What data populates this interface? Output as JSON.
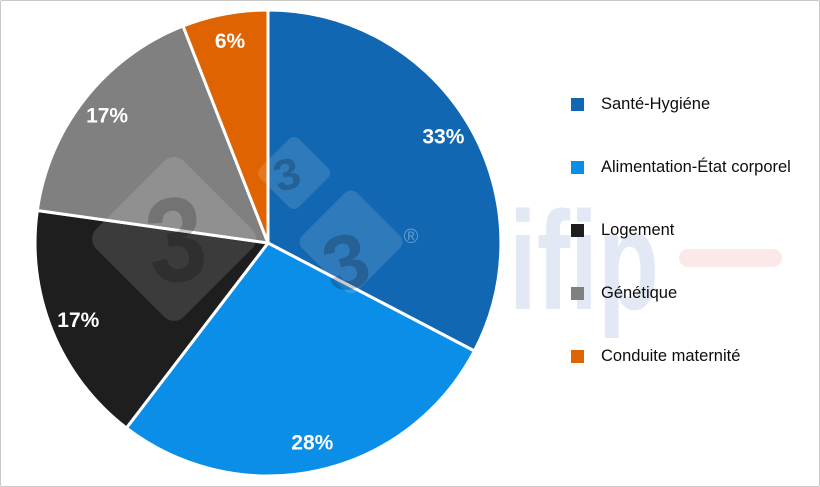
{
  "frame": {
    "background": "#ffffff",
    "border_color": "#c9c9c9"
  },
  "chart_data": {
    "type": "pie",
    "title": "",
    "categories": [
      "Santé-Hygiéne",
      "Alimentation-État corporel",
      "Logement",
      "Génétique",
      "Conduite maternité"
    ],
    "values": [
      33,
      28,
      17,
      17,
      6
    ],
    "value_labels": [
      "33%",
      "28%",
      "17%",
      "17%",
      "6%"
    ],
    "colors": [
      "#1167b1",
      "#0a8ee8",
      "#1e1e1e",
      "#808080",
      "#e06302"
    ],
    "start_angle_deg": 0,
    "direction": "clockwise",
    "slice_label_color": "#ffffff",
    "slice_border_color": "#ffffff",
    "legend_position": "right"
  },
  "watermark": {
    "digit": "3",
    "registered": "®",
    "brand": "ifip",
    "digit_color": "#000000",
    "diamond_color": "#ffffff",
    "brand_color": "#e2e9f4",
    "underline_color": "#fbe8e8"
  }
}
